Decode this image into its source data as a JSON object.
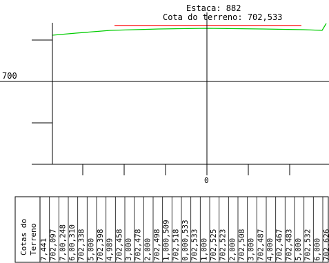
{
  "header": {
    "estaca_label": "Estaca: 882",
    "cota_label": "Cota do terreno: 702,533"
  },
  "axis": {
    "y_label": "700",
    "x_label": "0"
  },
  "table": {
    "row_title_line1": "Cotas do",
    "row_title_line2": "Terreno",
    "columns": [
      {
        "cota": "7,441"
      },
      {
        "cota": "702,097"
      },
      {
        "cota": "7,00,248"
      },
      {
        "cota": "6,00,310"
      },
      {
        "cota": "702,338"
      },
      {
        "cota": "5,000"
      },
      {
        "cota": "702,398"
      },
      {
        "cota": "4,989"
      },
      {
        "cota": "702,458"
      },
      {
        "cota": "3,000"
      },
      {
        "cota": "702,478"
      },
      {
        "cota": "2,000"
      },
      {
        "cota": "702,498"
      },
      {
        "cota": "1,000,509"
      },
      {
        "cota": "702,518"
      },
      {
        "cota": "0,000,533"
      },
      {
        "cota": "702,533"
      },
      {
        "cota": "1,000"
      },
      {
        "cota": "702,525"
      },
      {
        "cota": "702,523"
      },
      {
        "cota": "2,000"
      },
      {
        "cota": "702,508"
      },
      {
        "cota": "3,000"
      },
      {
        "cota": "702,487"
      },
      {
        "cota": "4,000"
      },
      {
        "cota": "702,467"
      },
      {
        "cota": "702,483"
      },
      {
        "cota": "5,000"
      },
      {
        "cota": "702,532"
      },
      {
        "cota": "6,000"
      },
      {
        "cota": "702,626"
      }
    ]
  },
  "colors": {
    "terrain_line": "#00cc00",
    "reference_line": "#ff0000",
    "lines": "#000000"
  }
}
